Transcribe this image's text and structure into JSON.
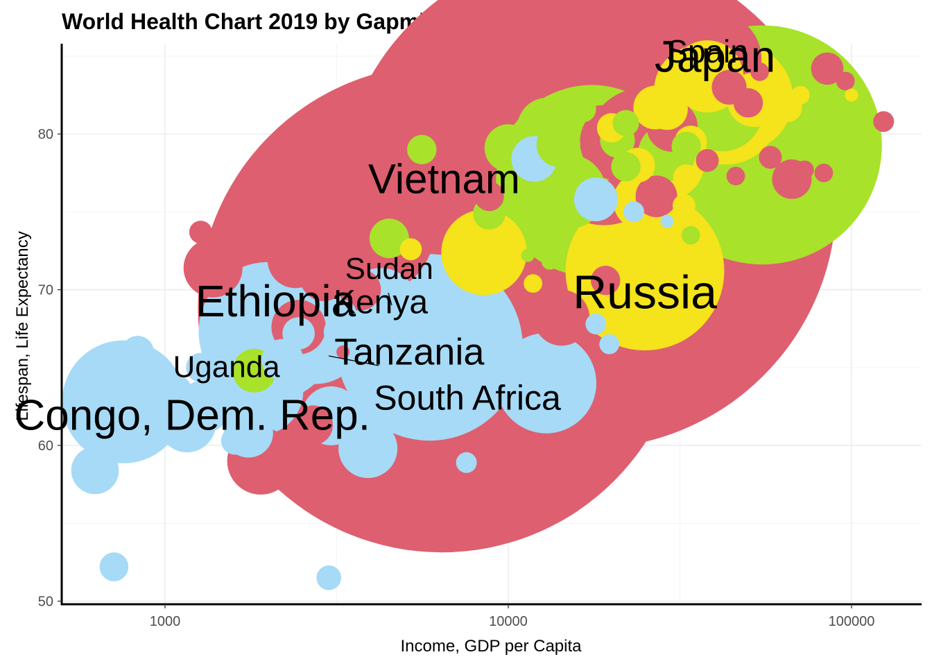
{
  "chart_data": {
    "type": "scatter",
    "title": "World Health Chart 2019 by Gapminder",
    "xlabel": "Income, GDP per Capita",
    "ylabel": "Lifespan, Life Expectancy",
    "x_scale": "log10",
    "xlim": [
      500,
      160000
    ],
    "ylim": [
      49.8,
      85.8
    ],
    "x_ticks": [
      1000,
      10000,
      100000
    ],
    "x_tick_labels": [
      "1000",
      "10000",
      "100000"
    ],
    "y_ticks": [
      50,
      60,
      70,
      80
    ],
    "y_tick_labels": [
      "50",
      "60",
      "70",
      "80"
    ],
    "grid": true,
    "legend": "none",
    "colors": {
      "africa": "#a6daf6",
      "asia": "#de5f6f",
      "americas": "#a8e22a",
      "europe": "#f5e31c"
    },
    "points": [
      {
        "x": 757,
        "y": 62.8,
        "pop": 87,
        "region": "africa"
      },
      {
        "x": 625,
        "y": 58.4,
        "pop": 13,
        "region": "africa"
      },
      {
        "x": 710,
        "y": 52.2,
        "pop": 4.8,
        "region": "africa"
      },
      {
        "x": 832,
        "y": 66.0,
        "pop": 6,
        "region": "africa"
      },
      {
        "x": 1000,
        "y": 62.9,
        "pop": 21,
        "region": "africa"
      },
      {
        "x": 1160,
        "y": 61.4,
        "pop": 19,
        "region": "africa"
      },
      {
        "x": 1300,
        "y": 62.5,
        "pop": 16,
        "region": "africa"
      },
      {
        "x": 1270,
        "y": 65.0,
        "pop": 5,
        "region": "africa"
      },
      {
        "x": 1550,
        "y": 63.8,
        "pop": 24,
        "region": "africa"
      },
      {
        "x": 1600,
        "y": 60.3,
        "pop": 4.5,
        "region": "africa"
      },
      {
        "x": 1750,
        "y": 60.8,
        "pop": 14,
        "region": "africa"
      },
      {
        "x": 1880,
        "y": 63.5,
        "pop": 45,
        "region": "africa"
      },
      {
        "x": 2000,
        "y": 67.3,
        "pop": 112,
        "region": "africa"
      },
      {
        "x": 2200,
        "y": 65.5,
        "pop": 10,
        "region": "africa"
      },
      {
        "x": 2450,
        "y": 67.2,
        "pop": 6,
        "region": "africa"
      },
      {
        "x": 2750,
        "y": 67.0,
        "pop": 52,
        "region": "africa"
      },
      {
        "x": 3200,
        "y": 67.3,
        "pop": 5,
        "region": "africa"
      },
      {
        "x": 3050,
        "y": 61.9,
        "pop": 20,
        "region": "africa"
      },
      {
        "x": 3000,
        "y": 51.5,
        "pop": 3.5,
        "region": "africa"
      },
      {
        "x": 3950,
        "y": 61.5,
        "pop": 8,
        "region": "africa"
      },
      {
        "x": 3900,
        "y": 59.8,
        "pop": 20,
        "region": "africa"
      },
      {
        "x": 3300,
        "y": 68.5,
        "pop": 4,
        "region": "africa"
      },
      {
        "x": 4250,
        "y": 69.0,
        "pop": 32,
        "region": "africa"
      },
      {
        "x": 4700,
        "y": 67.0,
        "pop": 25,
        "region": "africa"
      },
      {
        "x": 5600,
        "y": 64.5,
        "pop": 8,
        "region": "africa"
      },
      {
        "x": 5900,
        "y": 66.3,
        "pop": 200,
        "region": "africa"
      },
      {
        "x": 7550,
        "y": 58.9,
        "pop": 2.5,
        "region": "africa"
      },
      {
        "x": 9000,
        "y": 66.0,
        "pop": 4,
        "region": "africa"
      },
      {
        "x": 10700,
        "y": 66.0,
        "pop": 2.5,
        "region": "africa"
      },
      {
        "x": 12900,
        "y": 64.0,
        "pop": 58,
        "region": "africa"
      },
      {
        "x": 18000,
        "y": 67.8,
        "pop": 2.5,
        "region": "africa"
      },
      {
        "x": 19700,
        "y": 66.5,
        "pop": 2.3,
        "region": "africa"
      },
      {
        "x": 11900,
        "y": 78.4,
        "pop": 12,
        "region": "africa"
      },
      {
        "x": 18000,
        "y": 75.8,
        "pop": 11,
        "region": "africa"
      },
      {
        "x": 23200,
        "y": 75.0,
        "pop": 2.5,
        "region": "africa"
      },
      {
        "x": 29000,
        "y": 74.4,
        "pop": 1,
        "region": "africa"
      },
      {
        "x": 1270,
        "y": 73.7,
        "pop": 3,
        "region": "asia"
      },
      {
        "x": 1380,
        "y": 71.4,
        "pop": 20,
        "region": "asia"
      },
      {
        "x": 2400,
        "y": 71.9,
        "pop": 18,
        "region": "asia"
      },
      {
        "x": 2850,
        "y": 72.4,
        "pop": 10,
        "region": "asia"
      },
      {
        "x": 2900,
        "y": 70.8,
        "pop": 13,
        "region": "asia"
      },
      {
        "x": 2450,
        "y": 67.6,
        "pop": 17,
        "region": "asia"
      },
      {
        "x": 1900,
        "y": 59.0,
        "pop": 26,
        "region": "asia"
      },
      {
        "x": 2700,
        "y": 61.3,
        "pop": 9,
        "region": "asia"
      },
      {
        "x": 3300,
        "y": 66.0,
        "pop": 1,
        "region": "asia"
      },
      {
        "x": 3950,
        "y": 73.8,
        "pop": 96,
        "region": "asia"
      },
      {
        "x": 3700,
        "y": 70.0,
        "pop": 10,
        "region": "asia"
      },
      {
        "x": 6400,
        "y": 68.8,
        "pop": 1370,
        "region": "asia"
      },
      {
        "x": 6900,
        "y": 75.2,
        "pop": 44,
        "region": "asia"
      },
      {
        "x": 8400,
        "y": 76.8,
        "pop": 4,
        "region": "asia"
      },
      {
        "x": 8800,
        "y": 76.0,
        "pop": 5,
        "region": "asia"
      },
      {
        "x": 11500,
        "y": 72.3,
        "pop": 270,
        "region": "asia"
      },
      {
        "x": 12800,
        "y": 68.9,
        "pop": 3,
        "region": "asia"
      },
      {
        "x": 14300,
        "y": 68.2,
        "pop": 18,
        "region": "asia"
      },
      {
        "x": 17000,
        "y": 75.8,
        "pop": 1430,
        "region": "asia"
      },
      {
        "x": 19200,
        "y": 70.6,
        "pop": 5,
        "region": "asia"
      },
      {
        "x": 19000,
        "y": 78.0,
        "pop": 83,
        "region": "asia"
      },
      {
        "x": 21000,
        "y": 79.5,
        "pop": 35,
        "region": "asia"
      },
      {
        "x": 25000,
        "y": 79.2,
        "pop": 80,
        "region": "asia"
      },
      {
        "x": 27000,
        "y": 76.0,
        "pop": 10,
        "region": "asia"
      },
      {
        "x": 30000,
        "y": 80.5,
        "pop": 15,
        "region": "asia"
      },
      {
        "x": 38000,
        "y": 78.3,
        "pop": 3,
        "region": "asia"
      },
      {
        "x": 40000,
        "y": 84.8,
        "pop": 50,
        "region": "asia"
      },
      {
        "x": 44000,
        "y": 83.0,
        "pop": 7,
        "region": "asia"
      },
      {
        "x": 46000,
        "y": 77.3,
        "pop": 2,
        "region": "asia"
      },
      {
        "x": 50000,
        "y": 82.0,
        "pop": 5,
        "region": "asia"
      },
      {
        "x": 54000,
        "y": 84.0,
        "pop": 2,
        "region": "asia"
      },
      {
        "x": 58000,
        "y": 78.5,
        "pop": 3,
        "region": "asia"
      },
      {
        "x": 67000,
        "y": 77.1,
        "pop": 9,
        "region": "asia"
      },
      {
        "x": 73000,
        "y": 77.7,
        "pop": 2,
        "region": "asia"
      },
      {
        "x": 83000,
        "y": 77.5,
        "pop": 2,
        "region": "asia"
      },
      {
        "x": 85000,
        "y": 84.2,
        "pop": 6,
        "region": "asia"
      },
      {
        "x": 96000,
        "y": 83.4,
        "pop": 2,
        "region": "asia"
      },
      {
        "x": 124000,
        "y": 80.8,
        "pop": 2.5,
        "region": "asia"
      },
      {
        "x": 1820,
        "y": 64.8,
        "pop": 11,
        "region": "americas"
      },
      {
        "x": 4500,
        "y": 73.3,
        "pop": 9,
        "region": "americas"
      },
      {
        "x": 5600,
        "y": 79.0,
        "pop": 5,
        "region": "americas"
      },
      {
        "x": 8800,
        "y": 74.9,
        "pop": 6,
        "region": "americas"
      },
      {
        "x": 10000,
        "y": 79.1,
        "pop": 13,
        "region": "americas"
      },
      {
        "x": 10500,
        "y": 76.8,
        "pop": 1,
        "region": "americas"
      },
      {
        "x": 11400,
        "y": 72.2,
        "pop": 1,
        "region": "americas"
      },
      {
        "x": 13200,
        "y": 71.8,
        "pop": 1.5,
        "region": "americas"
      },
      {
        "x": 13000,
        "y": 80.4,
        "pop": 21,
        "region": "americas"
      },
      {
        "x": 14000,
        "y": 79.3,
        "pop": 11,
        "region": "americas"
      },
      {
        "x": 14000,
        "y": 76.1,
        "pop": 31,
        "region": "americas"
      },
      {
        "x": 15000,
        "y": 78.6,
        "pop": 50,
        "region": "americas"
      },
      {
        "x": 15000,
        "y": 76.3,
        "pop": 32,
        "region": "americas"
      },
      {
        "x": 16500,
        "y": 81.6,
        "pop": 4,
        "region": "americas"
      },
      {
        "x": 17500,
        "y": 77.0,
        "pop": 211,
        "region": "americas"
      },
      {
        "x": 20800,
        "y": 79.6,
        "pop": 7,
        "region": "americas"
      },
      {
        "x": 22000,
        "y": 77.9,
        "pop": 5,
        "region": "americas"
      },
      {
        "x": 22000,
        "y": 80.7,
        "pop": 4,
        "region": "americas"
      },
      {
        "x": 29000,
        "y": 78.8,
        "pop": 19,
        "region": "americas"
      },
      {
        "x": 33000,
        "y": 79.2,
        "pop": 5,
        "region": "americas"
      },
      {
        "x": 34000,
        "y": 73.5,
        "pop": 2,
        "region": "americas"
      },
      {
        "x": 40000,
        "y": 76.3,
        "pop": 1,
        "region": "americas"
      },
      {
        "x": 42000,
        "y": 81.5,
        "pop": 38,
        "region": "americas"
      },
      {
        "x": 55000,
        "y": 79.3,
        "pop": 329,
        "region": "americas"
      },
      {
        "x": 5200,
        "y": 72.6,
        "pop": 2.8,
        "region": "europe"
      },
      {
        "x": 8500,
        "y": 72.4,
        "pop": 42,
        "region": "europe"
      },
      {
        "x": 11800,
        "y": 70.4,
        "pop": 2,
        "region": "europe"
      },
      {
        "x": 20000,
        "y": 80.4,
        "pop": 5,
        "region": "europe"
      },
      {
        "x": 23800,
        "y": 78.0,
        "pop": 7,
        "region": "europe"
      },
      {
        "x": 24500,
        "y": 75.7,
        "pop": 19,
        "region": "europe"
      },
      {
        "x": 25000,
        "y": 71.2,
        "pop": 145,
        "region": "europe"
      },
      {
        "x": 26800,
        "y": 81.7,
        "pop": 11,
        "region": "europe"
      },
      {
        "x": 28500,
        "y": 78.3,
        "pop": 38,
        "region": "europe"
      },
      {
        "x": 29000,
        "y": 81.6,
        "pop": 10,
        "region": "europe"
      },
      {
        "x": 33000,
        "y": 77.2,
        "pop": 4,
        "region": "europe"
      },
      {
        "x": 32500,
        "y": 75.4,
        "pop": 3,
        "region": "europe"
      },
      {
        "x": 34000,
        "y": 79.5,
        "pop": 6,
        "region": "europe"
      },
      {
        "x": 36000,
        "y": 82.8,
        "pop": 47,
        "region": "europe"
      },
      {
        "x": 38000,
        "y": 83.7,
        "pop": 30,
        "region": "europe"
      },
      {
        "x": 43000,
        "y": 81.5,
        "pop": 67,
        "region": "europe"
      },
      {
        "x": 47000,
        "y": 82.3,
        "pop": 67,
        "region": "europe"
      },
      {
        "x": 52000,
        "y": 82.2,
        "pop": 17,
        "region": "europe"
      },
      {
        "x": 57000,
        "y": 82.0,
        "pop": 11,
        "region": "europe"
      },
      {
        "x": 60000,
        "y": 83.2,
        "pop": 5,
        "region": "europe"
      },
      {
        "x": 65000,
        "y": 81.7,
        "pop": 5,
        "region": "europe"
      },
      {
        "x": 71000,
        "y": 82.5,
        "pop": 2,
        "region": "europe"
      },
      {
        "x": 100000,
        "y": 82.5,
        "pop": 1,
        "region": "europe"
      }
    ],
    "annotations": [
      {
        "text": "Spain",
        "x": 38000,
        "y": 84.6,
        "size": 46
      },
      {
        "text": "Japan",
        "x": 40000,
        "y": 84.0,
        "size": 64
      },
      {
        "text": "Vietnam",
        "x": 6500,
        "y": 76.2,
        "size": 60
      },
      {
        "text": "Sudan",
        "x": 4500,
        "y": 70.7,
        "size": 44
      },
      {
        "text": "Kenya",
        "x": 4250,
        "y": 68.5,
        "size": 48
      },
      {
        "text": "Ethiopia",
        "x": 2100,
        "y": 68.3,
        "size": 64
      },
      {
        "text": "Russia",
        "x": 25000,
        "y": 68.8,
        "size": 68
      },
      {
        "text": "Tanzania",
        "x": 5150,
        "y": 65.2,
        "size": 54
      },
      {
        "text": "Uganda",
        "x": 1510,
        "y": 64.4,
        "size": 44
      },
      {
        "text": "South Africa",
        "x": 7600,
        "y": 62.3,
        "size": 50
      },
      {
        "text": "Congo, Dem. Rep.",
        "x": 1200,
        "y": 61.0,
        "size": 62
      }
    ]
  }
}
